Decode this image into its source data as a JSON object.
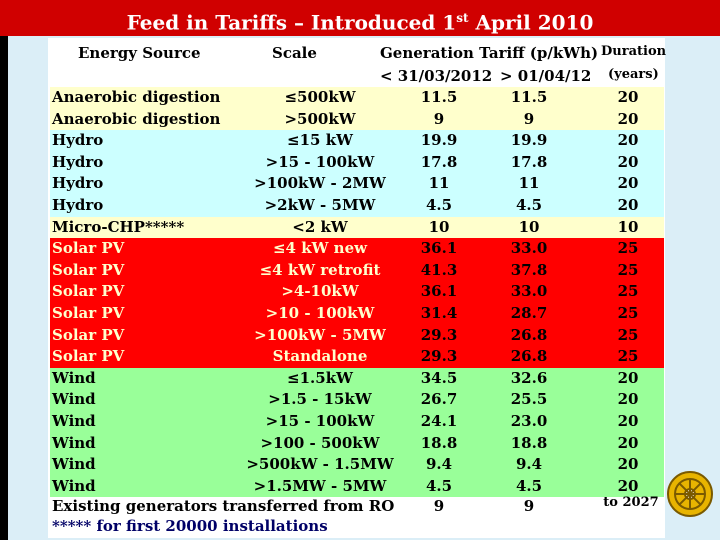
{
  "title": {
    "text": "Feed in Tariffs – Introduced 1",
    "sup": "st",
    "tail": " April 2010"
  },
  "header": {
    "source": "Energy Source",
    "scale": "Scale",
    "tariff": "Generation Tariff (p/kWh)",
    "before": "< 31/03/2012",
    "after": "> 01/04/12",
    "duration": "Duration",
    "years": "(years)"
  },
  "rows": [
    {
      "source": "Anaerobic digestion",
      "scale": "≤500kW",
      "g1": "11.5",
      "g2": "11.5",
      "dur": "20",
      "color": "cream"
    },
    {
      "source": "Anaerobic digestion",
      "scale": ">500kW",
      "g1": "9",
      "g2": "9",
      "dur": "20",
      "color": "cream"
    },
    {
      "source": "Hydro",
      "scale": "≤15 kW",
      "g1": "19.9",
      "g2": "19.9",
      "dur": "20",
      "color": "blue"
    },
    {
      "source": "Hydro",
      "scale": ">15 - 100kW",
      "g1": "17.8",
      "g2": "17.8",
      "dur": "20",
      "color": "blue"
    },
    {
      "source": "Hydro",
      "scale": ">100kW - 2MW",
      "g1": "11",
      "g2": "11",
      "dur": "20",
      "color": "blue"
    },
    {
      "source": "Hydro",
      "scale": ">2kW - 5MW",
      "g1": "4.5",
      "g2": "4.5",
      "dur": "20",
      "color": "blue"
    },
    {
      "source": "Micro-CHP*****",
      "scale": "<2 kW",
      "g1": "10",
      "g2": "10",
      "dur": "10",
      "color": "cream"
    },
    {
      "source": "Solar PV",
      "scale": "≤4 kW new",
      "g1": "36.1",
      "g2": "33.0",
      "dur": "25",
      "color": "red"
    },
    {
      "source": "Solar PV",
      "scale": "≤4 kW retrofit",
      "g1": "41.3",
      "g2": "37.8",
      "dur": "25",
      "color": "red"
    },
    {
      "source": "Solar PV",
      "scale": ">4-10kW",
      "g1": "36.1",
      "g2": "33.0",
      "dur": "25",
      "color": "red"
    },
    {
      "source": "Solar PV",
      "scale": ">10 - 100kW",
      "g1": "31.4",
      "g2": "28.7",
      "dur": "25",
      "color": "red"
    },
    {
      "source": "Solar PV",
      "scale": ">100kW - 5MW",
      "g1": "29.3",
      "g2": "26.8",
      "dur": "25",
      "color": "red"
    },
    {
      "source": "Solar PV",
      "scale": "Standalone",
      "g1": "29.3",
      "g2": "26.8",
      "dur": "25",
      "color": "red"
    },
    {
      "source": "Wind",
      "scale": "≤1.5kW",
      "g1": "34.5",
      "g2": "32.6",
      "dur": "20",
      "color": "green"
    },
    {
      "source": "Wind",
      "scale": ">1.5 - 15kW",
      "g1": "26.7",
      "g2": "25.5",
      "dur": "20",
      "color": "green"
    },
    {
      "source": "Wind",
      "scale": ">15 - 100kW",
      "g1": "24.1",
      "g2": "23.0",
      "dur": "20",
      "color": "green"
    },
    {
      "source": "Wind",
      "scale": ">100 - 500kW",
      "g1": "18.8",
      "g2": "18.8",
      "dur": "20",
      "color": "green"
    },
    {
      "source": "Wind",
      "scale": ">500kW - 1.5MW",
      "g1": "9.4",
      "g2": "9.4",
      "dur": "20",
      "color": "green"
    },
    {
      "source": "Wind",
      "scale": ">1.5MW - 5MW",
      "g1": "4.5",
      "g2": "4.5",
      "dur": "20",
      "color": "green"
    }
  ],
  "existing": {
    "text": "Existing generators transferred from RO",
    "g1": "9",
    "g2": "9",
    "dur": "to 2027"
  },
  "footnote": "***** for first 20000 installations",
  "colors": {
    "title_bg": "#d00000",
    "cream": "#ffffcc",
    "blue": "#ccffff",
    "red": "#ff0000",
    "green": "#99ff99",
    "panel": "#dbeef7"
  },
  "logo": {
    "icon": "rotary-wheel-icon"
  }
}
